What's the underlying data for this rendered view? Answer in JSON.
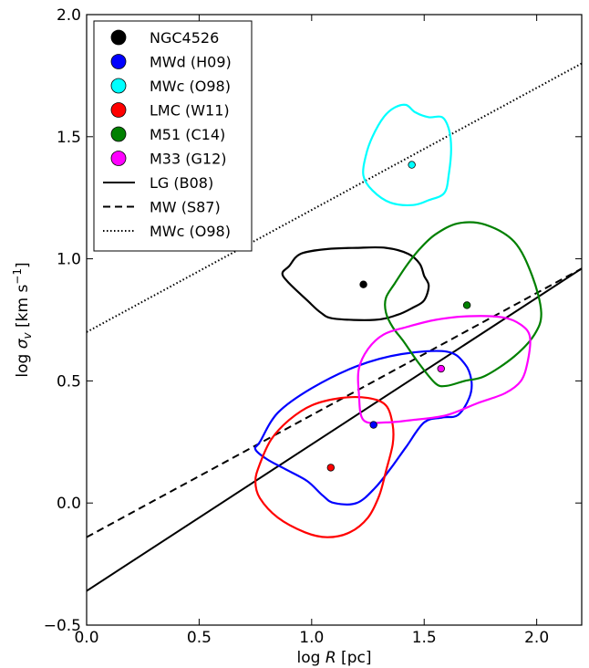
{
  "chart_data": {
    "type": "scatter",
    "xlabel_prefix": "log ",
    "xlabel_var": "R",
    "xlabel_suffix": " [pc]",
    "ylabel_prefix": "log ",
    "ylabel_var": "σ",
    "ylabel_sub": "v",
    "ylabel_suffix": " [km s",
    "ylabel_sup": "−1",
    "ylabel_end": "]",
    "xlim": [
      0.0,
      2.2
    ],
    "ylim": [
      -0.5,
      2.0
    ],
    "xticks": [
      0.0,
      0.5,
      1.0,
      1.5,
      2.0
    ],
    "xtick_labels": [
      "0.0",
      "0.5",
      "1.0",
      "1.5",
      "2.0"
    ],
    "yticks": [
      -0.5,
      0.0,
      0.5,
      1.0,
      1.5,
      2.0
    ],
    "ytick_labels": [
      "−0.5",
      "0.0",
      "0.5",
      "1.0",
      "1.5",
      "2.0"
    ],
    "grid": false,
    "legend_position": "top-left",
    "points": [
      {
        "name": "NGC4526",
        "x": 1.23,
        "y": 0.895,
        "color": "#000000"
      },
      {
        "name": "MWd (H09)",
        "x": 1.275,
        "y": 0.32,
        "color": "#0000ff"
      },
      {
        "name": "MWc (O98)",
        "x": 1.445,
        "y": 1.385,
        "color": "#00ffff"
      },
      {
        "name": "LMC (W11)",
        "x": 1.085,
        "y": 0.145,
        "color": "#ff0000"
      },
      {
        "name": "M51 (C14)",
        "x": 1.69,
        "y": 0.81,
        "color": "#008000"
      },
      {
        "name": "M33 (G12)",
        "x": 1.575,
        "y": 0.55,
        "color": "#ff00ff"
      }
    ],
    "contours": [
      {
        "name": "NGC4526",
        "color": "#000000",
        "points": [
          [
            0.9,
            0.97
          ],
          [
            0.95,
            1.02
          ],
          [
            1.07,
            1.04
          ],
          [
            1.2,
            1.045
          ],
          [
            1.33,
            1.045
          ],
          [
            1.43,
            1.02
          ],
          [
            1.48,
            0.98
          ],
          [
            1.5,
            0.93
          ],
          [
            1.52,
            0.89
          ],
          [
            1.5,
            0.83
          ],
          [
            1.45,
            0.8
          ],
          [
            1.38,
            0.77
          ],
          [
            1.28,
            0.75
          ],
          [
            1.1,
            0.755
          ],
          [
            1.04,
            0.78
          ],
          [
            0.98,
            0.83
          ],
          [
            0.9,
            0.9
          ],
          [
            0.87,
            0.94
          ]
        ]
      },
      {
        "name": "MWd (H09)",
        "color": "#0000ff",
        "points": [
          [
            0.77,
            0.25
          ],
          [
            0.85,
            0.37
          ],
          [
            1.0,
            0.47
          ],
          [
            1.2,
            0.56
          ],
          [
            1.4,
            0.61
          ],
          [
            1.6,
            0.62
          ],
          [
            1.68,
            0.57
          ],
          [
            1.71,
            0.5
          ],
          [
            1.7,
            0.43
          ],
          [
            1.65,
            0.36
          ],
          [
            1.58,
            0.35
          ],
          [
            1.5,
            0.33
          ],
          [
            1.42,
            0.23
          ],
          [
            1.35,
            0.14
          ],
          [
            1.28,
            0.06
          ],
          [
            1.2,
            0.0
          ],
          [
            1.1,
            0.0
          ],
          [
            1.05,
            0.03
          ],
          [
            0.98,
            0.09
          ],
          [
            0.88,
            0.14
          ],
          [
            0.8,
            0.18
          ],
          [
            0.75,
            0.22
          ]
        ]
      },
      {
        "name": "MWc (O98)",
        "color": "#00ffff",
        "points": [
          [
            1.24,
            1.42
          ],
          [
            1.27,
            1.5
          ],
          [
            1.32,
            1.58
          ],
          [
            1.37,
            1.62
          ],
          [
            1.42,
            1.63
          ],
          [
            1.46,
            1.6
          ],
          [
            1.52,
            1.58
          ],
          [
            1.58,
            1.58
          ],
          [
            1.61,
            1.53
          ],
          [
            1.62,
            1.45
          ],
          [
            1.61,
            1.35
          ],
          [
            1.59,
            1.27
          ],
          [
            1.52,
            1.24
          ],
          [
            1.45,
            1.22
          ],
          [
            1.35,
            1.23
          ],
          [
            1.27,
            1.28
          ],
          [
            1.23,
            1.34
          ]
        ]
      },
      {
        "name": "LMC (W11)",
        "color": "#ff0000",
        "points": [
          [
            0.77,
            0.16
          ],
          [
            0.82,
            0.26
          ],
          [
            0.9,
            0.34
          ],
          [
            1.0,
            0.4
          ],
          [
            1.13,
            0.43
          ],
          [
            1.25,
            0.43
          ],
          [
            1.33,
            0.4
          ],
          [
            1.36,
            0.32
          ],
          [
            1.36,
            0.24
          ],
          [
            1.33,
            0.13
          ],
          [
            1.3,
            0.03
          ],
          [
            1.25,
            -0.06
          ],
          [
            1.17,
            -0.12
          ],
          [
            1.07,
            -0.14
          ],
          [
            0.97,
            -0.12
          ],
          [
            0.85,
            -0.06
          ],
          [
            0.77,
            0.02
          ],
          [
            0.75,
            0.09
          ]
        ]
      },
      {
        "name": "M51 (C14)",
        "color": "#008000",
        "points": [
          [
            1.33,
            0.84
          ],
          [
            1.37,
            0.9
          ],
          [
            1.42,
            0.97
          ],
          [
            1.48,
            1.04
          ],
          [
            1.55,
            1.1
          ],
          [
            1.65,
            1.145
          ],
          [
            1.77,
            1.14
          ],
          [
            1.9,
            1.07
          ],
          [
            1.98,
            0.93
          ],
          [
            2.02,
            0.78
          ],
          [
            1.99,
            0.69
          ],
          [
            1.9,
            0.6
          ],
          [
            1.77,
            0.52
          ],
          [
            1.68,
            0.5
          ],
          [
            1.6,
            0.48
          ],
          [
            1.55,
            0.49
          ],
          [
            1.47,
            0.58
          ],
          [
            1.41,
            0.66
          ],
          [
            1.36,
            0.72
          ],
          [
            1.33,
            0.78
          ]
        ]
      },
      {
        "name": "M33 (G12)",
        "color": "#ff00ff",
        "points": [
          [
            1.21,
            0.55
          ],
          [
            1.25,
            0.63
          ],
          [
            1.32,
            0.69
          ],
          [
            1.42,
            0.72
          ],
          [
            1.55,
            0.75
          ],
          [
            1.7,
            0.765
          ],
          [
            1.85,
            0.76
          ],
          [
            1.93,
            0.73
          ],
          [
            1.97,
            0.68
          ],
          [
            1.96,
            0.58
          ],
          [
            1.93,
            0.5
          ],
          [
            1.86,
            0.45
          ],
          [
            1.74,
            0.41
          ],
          [
            1.6,
            0.36
          ],
          [
            1.45,
            0.34
          ],
          [
            1.33,
            0.33
          ],
          [
            1.23,
            0.34
          ],
          [
            1.21,
            0.45
          ]
        ]
      }
    ],
    "lines": [
      {
        "name": "LG (B08)",
        "style": "solid",
        "x": [
          0.0,
          2.2
        ],
        "y": [
          -0.36,
          0.96
        ]
      },
      {
        "name": "MW (S87)",
        "style": "dashed",
        "x": [
          0.0,
          2.2
        ],
        "y": [
          -0.14,
          0.96
        ]
      },
      {
        "name": "MWc (O98)",
        "style": "dotted",
        "x": [
          0.0,
          2.2
        ],
        "y": [
          0.7,
          1.8
        ]
      }
    ],
    "legend": [
      {
        "label": "NGC4526",
        "kind": "marker",
        "color": "#000000"
      },
      {
        "label": "MWd (H09)",
        "kind": "marker",
        "color": "#0000ff"
      },
      {
        "label": "MWc (O98)",
        "kind": "marker",
        "color": "#00ffff"
      },
      {
        "label": "LMC (W11)",
        "kind": "marker",
        "color": "#ff0000"
      },
      {
        "label": "M51 (C14)",
        "kind": "marker",
        "color": "#008000"
      },
      {
        "label": "M33 (G12)",
        "kind": "marker",
        "color": "#ff00ff"
      },
      {
        "label": "LG (B08)",
        "kind": "line",
        "style": "solid"
      },
      {
        "label": "MW (S87)",
        "kind": "line",
        "style": "dashed"
      },
      {
        "label": "MWc (O98)",
        "kind": "line",
        "style": "dotted"
      }
    ]
  }
}
